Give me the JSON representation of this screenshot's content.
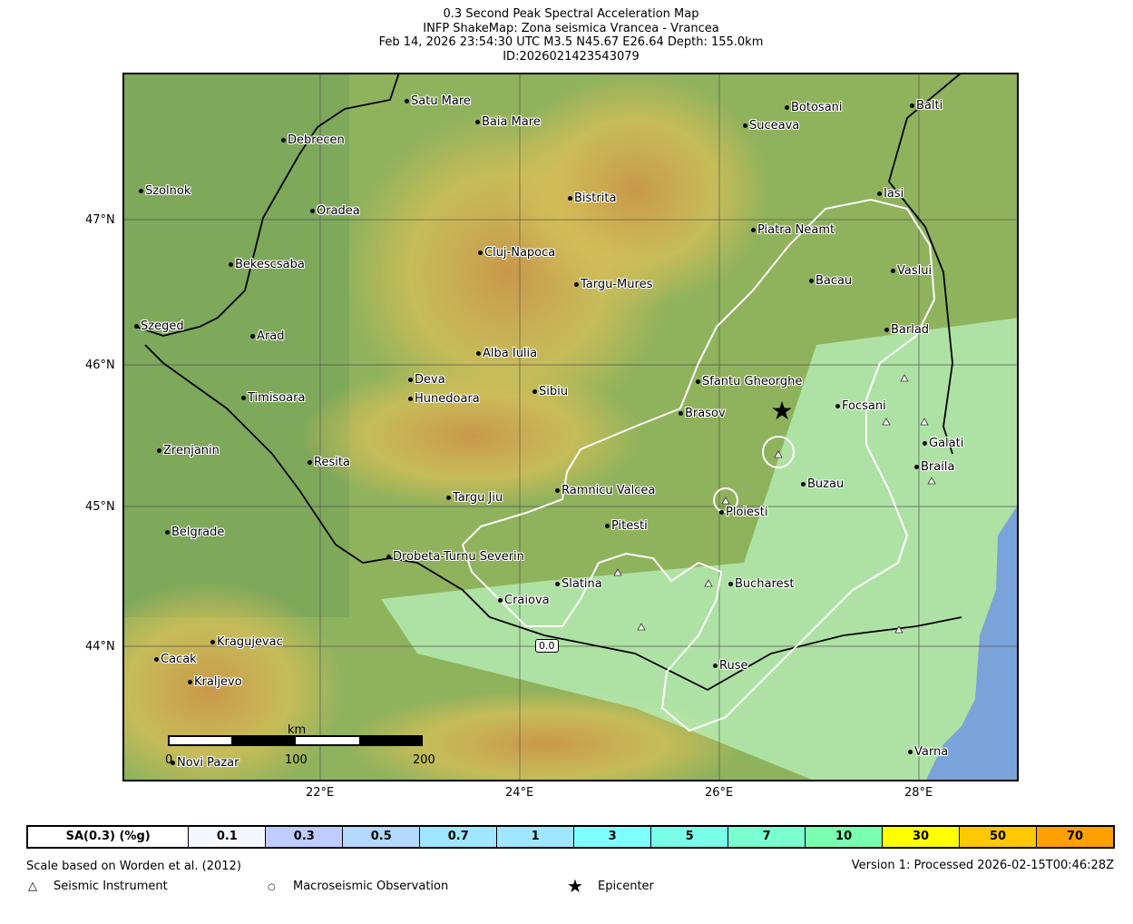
{
  "title": {
    "line1": "0.3 Second Peak Spectral Acceleration Map",
    "line2": "INFP ShakeMap: Zona seismica Vrancea - Vrancea",
    "line3": "Feb 14, 2026 23:54:30 UTC M3.5 N45.67 E26.64 Depth: 155.0km",
    "line4": "ID:2026021423543079"
  },
  "map": {
    "cities": [
      "Satu Mare",
      "Baia Mare",
      "Debrecen",
      "Botosani",
      "Balti",
      "Suceava",
      "Szolnok",
      "Bistrita",
      "Iasi",
      "Oradea",
      "Piatra Neamt",
      "Cluj-Napoca",
      "Bekescsaba",
      "Vaslui",
      "Targu-Mures",
      "Bacau",
      "Szeged",
      "Arad",
      "Barlad",
      "Alba Iulia",
      "Deva",
      "Sfantu Gheorghe",
      "Sibiu",
      "Timisoara",
      "Hunedoara",
      "Focsani",
      "Brasov",
      "Galati",
      "Zrenjanin",
      "Resita",
      "Braila",
      "Buzau",
      "Ramnicu Valcea",
      "Targu Jiu",
      "Ploiesti",
      "Pitesti",
      "Belgrade",
      "Drobeta-Turnu Severin",
      "Slatina",
      "Bucharest",
      "Craiova",
      "Kragujevac",
      "Cacak",
      "Ruse",
      "Kraljevo",
      "Novi Pazar",
      "Varna"
    ],
    "lat_labels": [
      "47°N",
      "46°N",
      "45°N",
      "44°N"
    ],
    "lon_labels": [
      "22°E",
      "24°E",
      "26°E",
      "28°E"
    ],
    "contour_label": "0.0",
    "scalebar": {
      "unit": "km",
      "ticks": [
        "0",
        "100",
        "200"
      ]
    },
    "colors": {
      "sea": "#7aa3d9",
      "contour": "#ffffff",
      "lowland": "#b8f2bc"
    }
  },
  "legend": {
    "title": "SA(0.3) (%g)",
    "bins": [
      {
        "label": "0.1",
        "color": "#f5f7ff"
      },
      {
        "label": "0.3",
        "color": "#bfccff"
      },
      {
        "label": "0.5",
        "color": "#b3d9ff"
      },
      {
        "label": "0.7",
        "color": "#a0e6ff"
      },
      {
        "label": "1",
        "color": "#a0e6ff"
      },
      {
        "label": "3",
        "color": "#80ffff"
      },
      {
        "label": "5",
        "color": "#7affeb"
      },
      {
        "label": "7",
        "color": "#7affd1"
      },
      {
        "label": "10",
        "color": "#7affb0"
      },
      {
        "label": "30",
        "color": "#ffff00"
      },
      {
        "label": "50",
        "color": "#ffc800"
      },
      {
        "label": "70",
        "color": "#ffa000"
      }
    ]
  },
  "footer": {
    "scale_note": "Scale based on Worden et al. (2012)",
    "version": "Version 1: Processed 2026-02-15T00:46:28Z",
    "instrument": "Seismic Instrument",
    "macro": "Macroseismic Observation",
    "epicenter": "Epicenter"
  }
}
